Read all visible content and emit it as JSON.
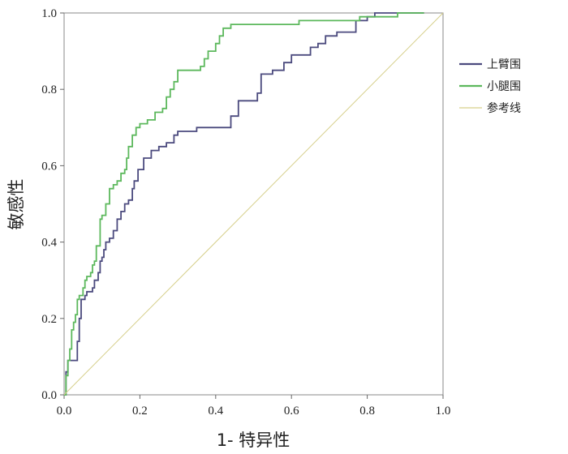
{
  "chart_data": {
    "type": "line",
    "title": "",
    "xlabel": "1- 特异性",
    "ylabel": "敏感性",
    "xlim": [
      0,
      1
    ],
    "ylim": [
      0,
      1
    ],
    "xticks": [
      "0.0",
      "0.2",
      "0.4",
      "0.6",
      "0.8",
      "1.0"
    ],
    "yticks": [
      "0.0",
      "0.2",
      "0.4",
      "0.6",
      "0.8",
      "1.0"
    ],
    "legend_position": "right",
    "grid": false,
    "series": [
      {
        "name": "上臂围",
        "color": "#4b4a7e",
        "points": [
          [
            0,
            0
          ],
          [
            0.005,
            0.02
          ],
          [
            0.005,
            0.06
          ],
          [
            0.01,
            0.06
          ],
          [
            0.01,
            0.09
          ],
          [
            0.035,
            0.09
          ],
          [
            0.035,
            0.14
          ],
          [
            0.04,
            0.2
          ],
          [
            0.045,
            0.25
          ],
          [
            0.055,
            0.26
          ],
          [
            0.06,
            0.27
          ],
          [
            0.07,
            0.27
          ],
          [
            0.075,
            0.28
          ],
          [
            0.08,
            0.3
          ],
          [
            0.085,
            0.3
          ],
          [
            0.09,
            0.32
          ],
          [
            0.095,
            0.35
          ],
          [
            0.1,
            0.36
          ],
          [
            0.105,
            0.38
          ],
          [
            0.11,
            0.4
          ],
          [
            0.12,
            0.41
          ],
          [
            0.13,
            0.43
          ],
          [
            0.14,
            0.46
          ],
          [
            0.15,
            0.48
          ],
          [
            0.16,
            0.5
          ],
          [
            0.17,
            0.51
          ],
          [
            0.18,
            0.54
          ],
          [
            0.185,
            0.56
          ],
          [
            0.195,
            0.59
          ],
          [
            0.21,
            0.62
          ],
          [
            0.23,
            0.64
          ],
          [
            0.25,
            0.65
          ],
          [
            0.27,
            0.66
          ],
          [
            0.29,
            0.68
          ],
          [
            0.3,
            0.69
          ],
          [
            0.33,
            0.69
          ],
          [
            0.35,
            0.7
          ],
          [
            0.4,
            0.7
          ],
          [
            0.44,
            0.73
          ],
          [
            0.46,
            0.77
          ],
          [
            0.49,
            0.77
          ],
          [
            0.51,
            0.79
          ],
          [
            0.52,
            0.84
          ],
          [
            0.55,
            0.85
          ],
          [
            0.58,
            0.87
          ],
          [
            0.6,
            0.89
          ],
          [
            0.63,
            0.89
          ],
          [
            0.65,
            0.91
          ],
          [
            0.67,
            0.92
          ],
          [
            0.69,
            0.94
          ],
          [
            0.7,
            0.94
          ],
          [
            0.72,
            0.95
          ],
          [
            0.76,
            0.95
          ],
          [
            0.77,
            0.98
          ],
          [
            0.8,
            0.99
          ],
          [
            0.82,
            1.0
          ],
          [
            0.95,
            1.0
          ],
          [
            0.95,
            1.0
          ]
        ]
      },
      {
        "name": "小腿围",
        "color": "#5cb85c",
        "points": [
          [
            0,
            0
          ],
          [
            0.005,
            0.05
          ],
          [
            0.01,
            0.09
          ],
          [
            0.015,
            0.12
          ],
          [
            0.02,
            0.17
          ],
          [
            0.025,
            0.19
          ],
          [
            0.03,
            0.21
          ],
          [
            0.035,
            0.25
          ],
          [
            0.04,
            0.26
          ],
          [
            0.05,
            0.28
          ],
          [
            0.055,
            0.3
          ],
          [
            0.06,
            0.31
          ],
          [
            0.07,
            0.32
          ],
          [
            0.075,
            0.34
          ],
          [
            0.08,
            0.35
          ],
          [
            0.085,
            0.39
          ],
          [
            0.095,
            0.46
          ],
          [
            0.1,
            0.47
          ],
          [
            0.11,
            0.5
          ],
          [
            0.12,
            0.54
          ],
          [
            0.13,
            0.55
          ],
          [
            0.14,
            0.56
          ],
          [
            0.15,
            0.58
          ],
          [
            0.16,
            0.59
          ],
          [
            0.165,
            0.62
          ],
          [
            0.17,
            0.65
          ],
          [
            0.18,
            0.68
          ],
          [
            0.19,
            0.7
          ],
          [
            0.2,
            0.71
          ],
          [
            0.22,
            0.72
          ],
          [
            0.24,
            0.74
          ],
          [
            0.26,
            0.75
          ],
          [
            0.27,
            0.78
          ],
          [
            0.28,
            0.8
          ],
          [
            0.29,
            0.82
          ],
          [
            0.3,
            0.85
          ],
          [
            0.36,
            0.86
          ],
          [
            0.37,
            0.88
          ],
          [
            0.38,
            0.9
          ],
          [
            0.4,
            0.92
          ],
          [
            0.41,
            0.94
          ],
          [
            0.42,
            0.96
          ],
          [
            0.44,
            0.97
          ],
          [
            0.58,
            0.97
          ],
          [
            0.62,
            0.98
          ],
          [
            0.75,
            0.98
          ],
          [
            0.78,
            0.99
          ],
          [
            0.88,
            1.0
          ],
          [
            0.95,
            1.0
          ]
        ]
      },
      {
        "name": "参考线",
        "color": "#d6cf8a",
        "points": [
          [
            0,
            0
          ],
          [
            1,
            1
          ]
        ]
      }
    ]
  }
}
